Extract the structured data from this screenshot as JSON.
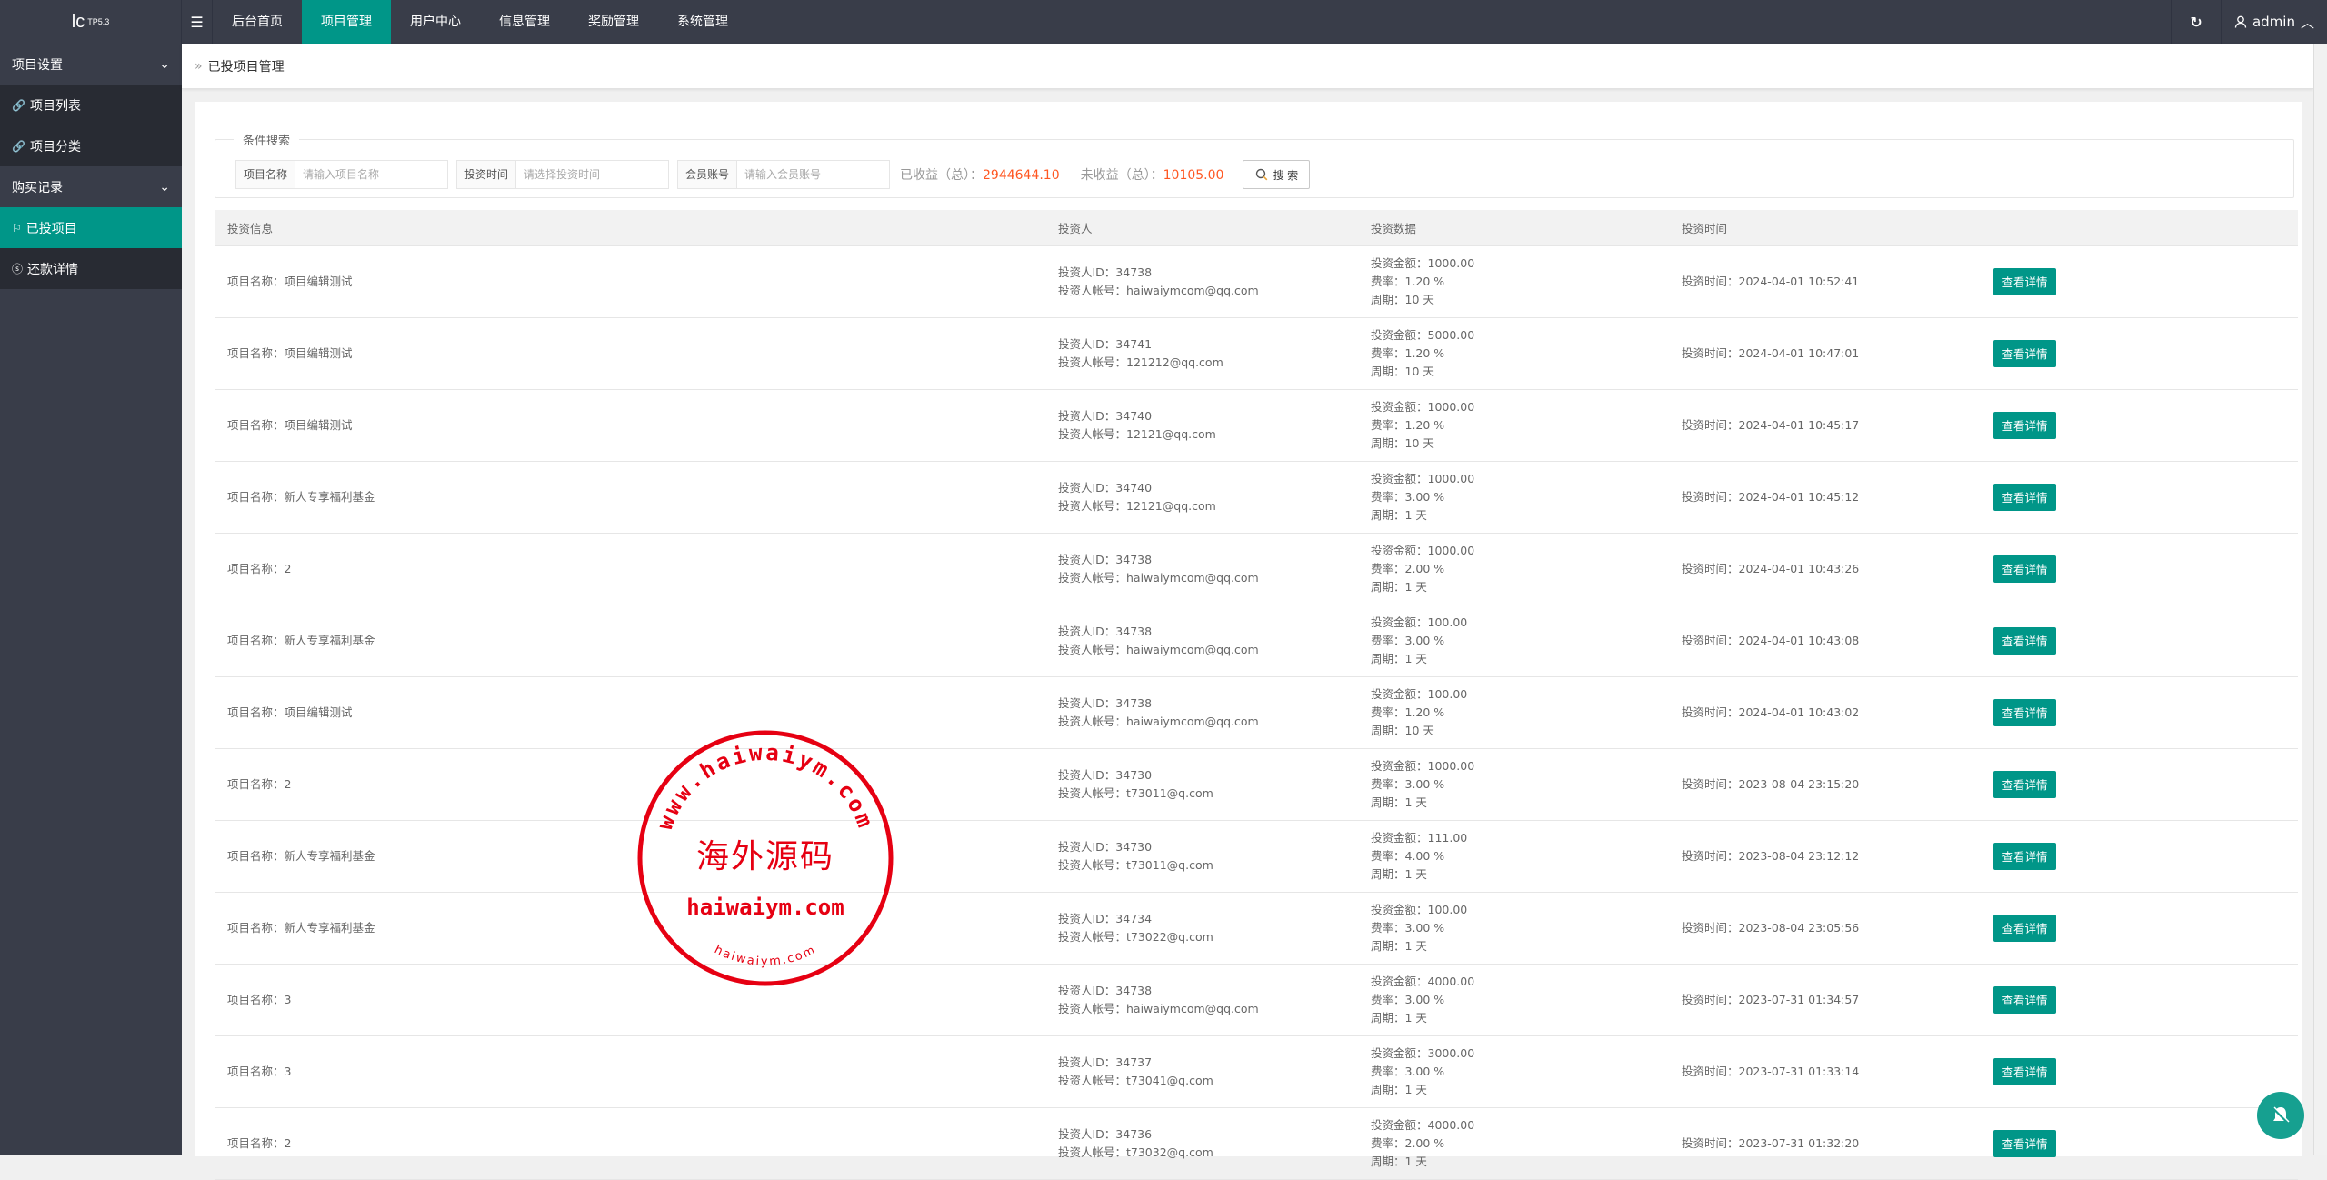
{
  "top": {
    "logo": "lc",
    "logo_version": "TP5.3",
    "nav": [
      "后台首页",
      "项目管理",
      "用户中心",
      "信息管理",
      "奖励管理",
      "系统管理"
    ],
    "active_nav": 1,
    "user": "admin"
  },
  "sidebar": {
    "groups": [
      {
        "label": "项目设置",
        "items": [
          "项目列表",
          "项目分类"
        ]
      },
      {
        "label": "购买记录",
        "items": [
          "已投项目",
          "还款详情"
        ]
      }
    ],
    "active": "已投项目"
  },
  "breadcrumb": "已投项目管理",
  "search": {
    "legend": "条件搜索",
    "fields": [
      {
        "label": "项目名称",
        "placeholder": "请输入项目名称"
      },
      {
        "label": "投资时间",
        "placeholder": "请选择投资时间"
      },
      {
        "label": "会员账号",
        "placeholder": "请输入会员账号"
      }
    ],
    "earned_label": "已收益（总）：",
    "earned": "2944644.10",
    "pending_label": "未收益（总）：",
    "pending": "10105.00",
    "button": "搜 索"
  },
  "table": {
    "headers": [
      "投资信息",
      "投资人",
      "投资数据",
      "投资时间",
      ""
    ],
    "button": "查看详情",
    "rows": [
      {
        "name": "项目名称：项目编辑测试",
        "uid": "投资人ID：34738",
        "account": "投资人帐号：haiwaiymcom@qq.com",
        "amount": "投资金额：1000.00",
        "rate": "费率：1.20 %",
        "period": "周期：10 天",
        "time": "投资时间：2024-04-01 10:52:41"
      },
      {
        "name": "项目名称：项目编辑测试",
        "uid": "投资人ID：34741",
        "account": "投资人帐号：121212@qq.com",
        "amount": "投资金额：5000.00",
        "rate": "费率：1.20 %",
        "period": "周期：10 天",
        "time": "投资时间：2024-04-01 10:47:01"
      },
      {
        "name": "项目名称：项目编辑测试",
        "uid": "投资人ID：34740",
        "account": "投资人帐号：12121@qq.com",
        "amount": "投资金额：1000.00",
        "rate": "费率：1.20 %",
        "period": "周期：10 天",
        "time": "投资时间：2024-04-01 10:45:17"
      },
      {
        "name": "项目名称：新人专享福利基金",
        "uid": "投资人ID：34740",
        "account": "投资人帐号：12121@qq.com",
        "amount": "投资金额：1000.00",
        "rate": "费率：3.00 %",
        "period": "周期：1 天",
        "time": "投资时间：2024-04-01 10:45:12"
      },
      {
        "name": "项目名称：2",
        "uid": "投资人ID：34738",
        "account": "投资人帐号：haiwaiymcom@qq.com",
        "amount": "投资金额：1000.00",
        "rate": "费率：2.00 %",
        "period": "周期：1 天",
        "time": "投资时间：2024-04-01 10:43:26"
      },
      {
        "name": "项目名称：新人专享福利基金",
        "uid": "投资人ID：34738",
        "account": "投资人帐号：haiwaiymcom@qq.com",
        "amount": "投资金额：100.00",
        "rate": "费率：3.00 %",
        "period": "周期：1 天",
        "time": "投资时间：2024-04-01 10:43:08"
      },
      {
        "name": "项目名称：项目编辑测试",
        "uid": "投资人ID：34738",
        "account": "投资人帐号：haiwaiymcom@qq.com",
        "amount": "投资金额：100.00",
        "rate": "费率：1.20 %",
        "period": "周期：10 天",
        "time": "投资时间：2024-04-01 10:43:02"
      },
      {
        "name": "项目名称：2",
        "uid": "投资人ID：34730",
        "account": "投资人帐号：t73011@q.com",
        "amount": "投资金额：1000.00",
        "rate": "费率：3.00 %",
        "period": "周期：1 天",
        "time": "投资时间：2023-08-04 23:15:20"
      },
      {
        "name": "项目名称：新人专享福利基金",
        "uid": "投资人ID：34730",
        "account": "投资人帐号：t73011@q.com",
        "amount": "投资金额：111.00",
        "rate": "费率：4.00 %",
        "period": "周期：1 天",
        "time": "投资时间：2023-08-04 23:12:12"
      },
      {
        "name": "项目名称：新人专享福利基金",
        "uid": "投资人ID：34734",
        "account": "投资人帐号：t73022@q.com",
        "amount": "投资金额：100.00",
        "rate": "费率：3.00 %",
        "period": "周期：1 天",
        "time": "投资时间：2023-08-04 23:05:56"
      },
      {
        "name": "项目名称：3",
        "uid": "投资人ID：34738",
        "account": "投资人帐号：haiwaiymcom@qq.com",
        "amount": "投资金额：4000.00",
        "rate": "费率：3.00 %",
        "period": "周期：1 天",
        "time": "投资时间：2023-07-31 01:34:57"
      },
      {
        "name": "项目名称：3",
        "uid": "投资人ID：34737",
        "account": "投资人帐号：t73041@q.com",
        "amount": "投资金额：3000.00",
        "rate": "费率：3.00 %",
        "period": "周期：1 天",
        "time": "投资时间：2023-07-31 01:33:14"
      },
      {
        "name": "项目名称：2",
        "uid": "投资人ID：34736",
        "account": "投资人帐号：t73032@q.com",
        "amount": "投资金额：4000.00",
        "rate": "费率：2.00 %",
        "period": "周期：1 天",
        "time": "投资时间：2023-07-31 01:32:20"
      }
    ]
  },
  "watermark": {
    "arc_text": "www.haiwaiym.com",
    "center_text": "海外源码",
    "line_text": "haiwaiym.com",
    "bottom_text": "haiwaiym.com",
    "color": "#e60012"
  },
  "colors": {
    "accent": "#009688",
    "topbar": "#393d49",
    "value": "#ff5722"
  }
}
